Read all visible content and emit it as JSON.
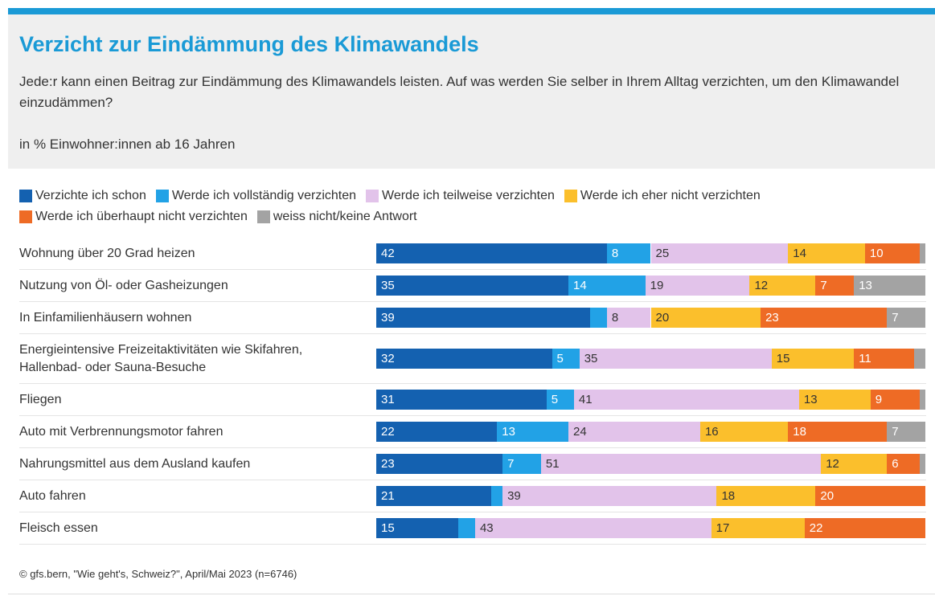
{
  "chart_data": {
    "type": "stacked-bar-horizontal",
    "title": "Verzicht zur Eindämmung des Klimawandels",
    "subtitle": "Jede:r kann einen Beitrag zur Eindämmung des Klimawandels leisten. Auf was werden Sie selber in Ihrem Alltag verzichten, um den Klimawandel einzudämmen?",
    "unit_note": "in % Einwohner:innen ab 16 Jahren",
    "source": "© gfs.bern, \"Wie geht's, Schweiz?\", April/Mai 2023 (n=6746)",
    "xlim": [
      0,
      100
    ],
    "categories": [
      "Wohnung über 20 Grad heizen",
      "Nutzung von Öl- oder Gasheizungen",
      "In Einfamilienhäusern wohnen",
      "Energieintensive Freizeitaktivitäten wie Skifahren,\nHallenbad- oder Sauna-Besuche",
      "Fliegen",
      "Auto mit Verbrennungsmotor fahren",
      "Nahrungsmittel aus dem Ausland kaufen",
      "Auto fahren",
      "Fleisch essen"
    ],
    "series": [
      {
        "name": "Verzichte ich schon",
        "color": "#1461b0",
        "values": [
          42,
          35,
          39,
          32,
          31,
          22,
          23,
          21,
          15
        ]
      },
      {
        "name": "Werde ich vollständig verzichten",
        "color": "#22a2e6",
        "values": [
          8,
          14,
          3,
          5,
          5,
          13,
          7,
          2,
          3
        ]
      },
      {
        "name": "Werde ich teilweise verzichten",
        "color": "#e2c3ea",
        "values": [
          25,
          19,
          8,
          35,
          41,
          24,
          51,
          39,
          43
        ]
      },
      {
        "name": "Werde ich eher nicht verzichten",
        "color": "#fbbf2c",
        "values": [
          14,
          12,
          20,
          15,
          13,
          16,
          12,
          18,
          17
        ]
      },
      {
        "name": "Werde ich überhaupt nicht verzichten",
        "color": "#ee6b25",
        "values": [
          10,
          7,
          23,
          11,
          9,
          18,
          6,
          20,
          22
        ]
      },
      {
        "name": "weiss nicht/keine Antwort",
        "color": "#a3a3a3",
        "values": [
          1,
          13,
          7,
          2,
          1,
          7,
          1,
          0,
          0
        ]
      }
    ]
  }
}
